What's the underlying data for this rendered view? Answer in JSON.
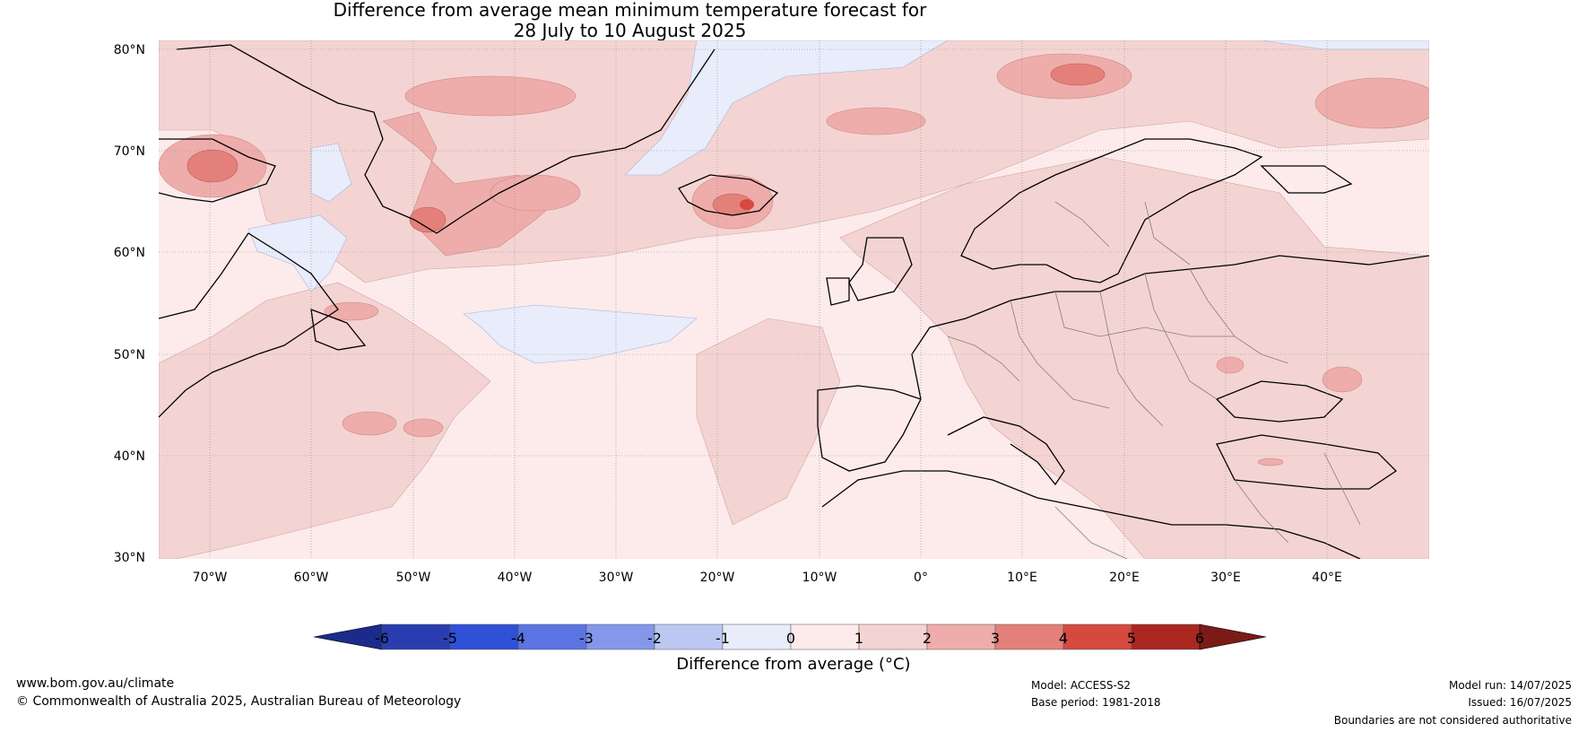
{
  "title": {
    "line1": "Difference from average mean minimum temperature forecast for",
    "line2": "28 July to 10 August 2025"
  },
  "map": {
    "region": "North Atlantic and Europe",
    "lat_labels": [
      "80°N",
      "70°N",
      "60°N",
      "50°N",
      "40°N",
      "30°N"
    ],
    "lon_labels": [
      "70°W",
      "60°W",
      "50°W",
      "40°W",
      "30°W",
      "20°W",
      "10°W",
      "0°",
      "10°E",
      "20°E",
      "30°E",
      "40°E"
    ],
    "colors": {
      "land_outline": "#000000",
      "borders": "#808080",
      "graticule": "#888888"
    }
  },
  "colorbar": {
    "ticks": [
      "-6",
      "-5",
      "-4",
      "-3",
      "-2",
      "-1",
      "0",
      "1",
      "2",
      "3",
      "4",
      "5",
      "6"
    ],
    "colors": [
      "#1b2b8c",
      "#2a3db0",
      "#3050d8",
      "#5a74e2",
      "#8597ea",
      "#bdc8f2",
      "#e8ecfb",
      "#fcebea",
      "#f4d4d2",
      "#eeadaa",
      "#e4807a",
      "#d6493f",
      "#aa2621",
      "#7a1b17"
    ],
    "label": "Difference from average (°C)"
  },
  "footer": {
    "website": "www.bom.gov.au/climate",
    "copyright": "© Commonwealth of Australia 2025, Australian Bureau of Meteorology",
    "model": "Model: ACCESS-S2",
    "base_period": "Base period: 1981-2018",
    "model_run": "Model run: 14/07/2025",
    "issued": "Issued: 16/07/2025",
    "disclaimer": "Boundaries are not considered authoritative"
  }
}
